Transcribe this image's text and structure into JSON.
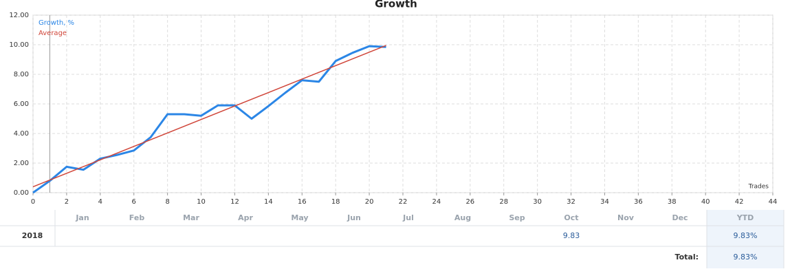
{
  "chart_data": {
    "type": "line",
    "title": "Growth",
    "x_label": "Trades",
    "xlim": [
      0,
      44
    ],
    "xticks": [
      0,
      2,
      4,
      6,
      8,
      10,
      12,
      14,
      16,
      18,
      20,
      22,
      24,
      26,
      28,
      30,
      32,
      34,
      36,
      38,
      40,
      42,
      44
    ],
    "ylim": [
      0,
      12
    ],
    "yticks": [
      {
        "value": 0,
        "label": "0.00"
      },
      {
        "value": 2,
        "label": "2.00"
      },
      {
        "value": 4,
        "label": "4.00"
      },
      {
        "value": 6,
        "label": "6.00"
      },
      {
        "value": 8,
        "label": "8.00"
      },
      {
        "value": 10,
        "label": "10.00"
      },
      {
        "value": 12,
        "label": "12.00"
      }
    ],
    "grid": true,
    "legend": "upper left",
    "series": [
      {
        "name": "Growth, %",
        "color": "#2b86e6",
        "x": [
          0,
          1,
          2,
          3,
          4,
          5,
          6,
          7,
          8,
          9,
          10,
          11,
          12,
          13,
          14,
          15,
          16,
          17,
          18,
          19,
          20,
          21
        ],
        "values": [
          0,
          0.8,
          1.75,
          1.55,
          2.3,
          2.55,
          2.85,
          3.75,
          5.3,
          5.3,
          5.2,
          5.9,
          5.9,
          5.0,
          5.85,
          6.75,
          7.6,
          7.5,
          8.9,
          9.45,
          9.9,
          9.85
        ]
      },
      {
        "name": "Average",
        "color": "#d0463a",
        "x": [
          0,
          21
        ],
        "values": [
          0.4,
          9.95
        ]
      }
    ]
  },
  "table": {
    "months": [
      "Jan",
      "Feb",
      "Mar",
      "Apr",
      "May",
      "Jun",
      "Jul",
      "Aug",
      "Sep",
      "Oct",
      "Nov",
      "Dec"
    ],
    "ytd_header": "YTD",
    "rows": [
      {
        "year": "2018",
        "values": [
          null,
          null,
          null,
          null,
          null,
          null,
          null,
          null,
          null,
          "9.83",
          null,
          null
        ],
        "ytd": "9.83%"
      }
    ],
    "total": {
      "label": "Total:",
      "value": "9.83%"
    }
  }
}
